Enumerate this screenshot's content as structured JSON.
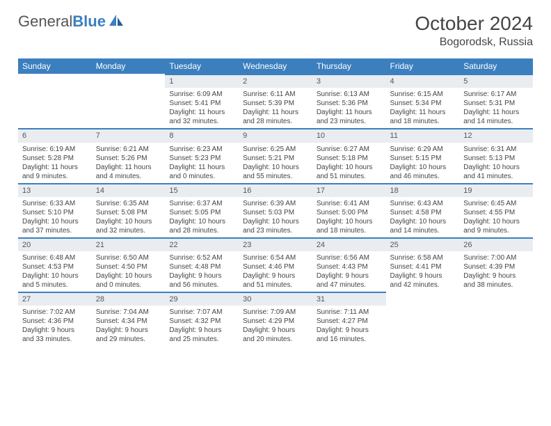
{
  "logo": {
    "gray": "General",
    "blue": "Blue"
  },
  "title": "October 2024",
  "location": "Bogorodsk, Russia",
  "colors": {
    "header_bg": "#3b7fbf",
    "header_text": "#ffffff",
    "daynum_bg": "#e9edf1",
    "daynum_border": "#3b7fbf",
    "body_bg": "#ffffff",
    "text": "#444444"
  },
  "weekdays": [
    "Sunday",
    "Monday",
    "Tuesday",
    "Wednesday",
    "Thursday",
    "Friday",
    "Saturday"
  ],
  "weeks": [
    [
      null,
      null,
      {
        "n": "1",
        "sr": "6:09 AM",
        "ss": "5:41 PM",
        "dl": "11 hours and 32 minutes."
      },
      {
        "n": "2",
        "sr": "6:11 AM",
        "ss": "5:39 PM",
        "dl": "11 hours and 28 minutes."
      },
      {
        "n": "3",
        "sr": "6:13 AM",
        "ss": "5:36 PM",
        "dl": "11 hours and 23 minutes."
      },
      {
        "n": "4",
        "sr": "6:15 AM",
        "ss": "5:34 PM",
        "dl": "11 hours and 18 minutes."
      },
      {
        "n": "5",
        "sr": "6:17 AM",
        "ss": "5:31 PM",
        "dl": "11 hours and 14 minutes."
      }
    ],
    [
      {
        "n": "6",
        "sr": "6:19 AM",
        "ss": "5:28 PM",
        "dl": "11 hours and 9 minutes."
      },
      {
        "n": "7",
        "sr": "6:21 AM",
        "ss": "5:26 PM",
        "dl": "11 hours and 4 minutes."
      },
      {
        "n": "8",
        "sr": "6:23 AM",
        "ss": "5:23 PM",
        "dl": "11 hours and 0 minutes."
      },
      {
        "n": "9",
        "sr": "6:25 AM",
        "ss": "5:21 PM",
        "dl": "10 hours and 55 minutes."
      },
      {
        "n": "10",
        "sr": "6:27 AM",
        "ss": "5:18 PM",
        "dl": "10 hours and 51 minutes."
      },
      {
        "n": "11",
        "sr": "6:29 AM",
        "ss": "5:15 PM",
        "dl": "10 hours and 46 minutes."
      },
      {
        "n": "12",
        "sr": "6:31 AM",
        "ss": "5:13 PM",
        "dl": "10 hours and 41 minutes."
      }
    ],
    [
      {
        "n": "13",
        "sr": "6:33 AM",
        "ss": "5:10 PM",
        "dl": "10 hours and 37 minutes."
      },
      {
        "n": "14",
        "sr": "6:35 AM",
        "ss": "5:08 PM",
        "dl": "10 hours and 32 minutes."
      },
      {
        "n": "15",
        "sr": "6:37 AM",
        "ss": "5:05 PM",
        "dl": "10 hours and 28 minutes."
      },
      {
        "n": "16",
        "sr": "6:39 AM",
        "ss": "5:03 PM",
        "dl": "10 hours and 23 minutes."
      },
      {
        "n": "17",
        "sr": "6:41 AM",
        "ss": "5:00 PM",
        "dl": "10 hours and 18 minutes."
      },
      {
        "n": "18",
        "sr": "6:43 AM",
        "ss": "4:58 PM",
        "dl": "10 hours and 14 minutes."
      },
      {
        "n": "19",
        "sr": "6:45 AM",
        "ss": "4:55 PM",
        "dl": "10 hours and 9 minutes."
      }
    ],
    [
      {
        "n": "20",
        "sr": "6:48 AM",
        "ss": "4:53 PM",
        "dl": "10 hours and 5 minutes."
      },
      {
        "n": "21",
        "sr": "6:50 AM",
        "ss": "4:50 PM",
        "dl": "10 hours and 0 minutes."
      },
      {
        "n": "22",
        "sr": "6:52 AM",
        "ss": "4:48 PM",
        "dl": "9 hours and 56 minutes."
      },
      {
        "n": "23",
        "sr": "6:54 AM",
        "ss": "4:46 PM",
        "dl": "9 hours and 51 minutes."
      },
      {
        "n": "24",
        "sr": "6:56 AM",
        "ss": "4:43 PM",
        "dl": "9 hours and 47 minutes."
      },
      {
        "n": "25",
        "sr": "6:58 AM",
        "ss": "4:41 PM",
        "dl": "9 hours and 42 minutes."
      },
      {
        "n": "26",
        "sr": "7:00 AM",
        "ss": "4:39 PM",
        "dl": "9 hours and 38 minutes."
      }
    ],
    [
      {
        "n": "27",
        "sr": "7:02 AM",
        "ss": "4:36 PM",
        "dl": "9 hours and 33 minutes."
      },
      {
        "n": "28",
        "sr": "7:04 AM",
        "ss": "4:34 PM",
        "dl": "9 hours and 29 minutes."
      },
      {
        "n": "29",
        "sr": "7:07 AM",
        "ss": "4:32 PM",
        "dl": "9 hours and 25 minutes."
      },
      {
        "n": "30",
        "sr": "7:09 AM",
        "ss": "4:29 PM",
        "dl": "9 hours and 20 minutes."
      },
      {
        "n": "31",
        "sr": "7:11 AM",
        "ss": "4:27 PM",
        "dl": "9 hours and 16 minutes."
      },
      null,
      null
    ]
  ],
  "labels": {
    "sunrise": "Sunrise:",
    "sunset": "Sunset:",
    "daylight": "Daylight:"
  }
}
